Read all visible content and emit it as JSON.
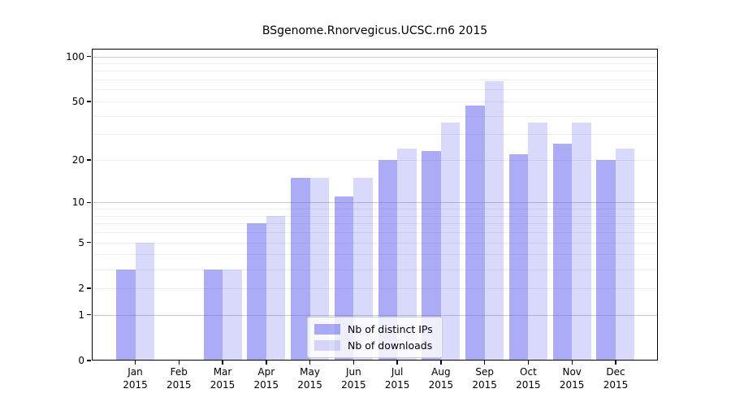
{
  "chart_data": {
    "type": "bar",
    "title": "BSgenome.Rnorvegicus.UCSC.rn6 2015",
    "categories": [
      "Jan",
      "Feb",
      "Mar",
      "Apr",
      "May",
      "Jun",
      "Jul",
      "Aug",
      "Sep",
      "Oct",
      "Nov",
      "Dec"
    ],
    "year_label": "2015",
    "series": [
      {
        "name": "Nb of distinct IPs",
        "color": "rgba(102,102,238,0.55)",
        "values": [
          3,
          0,
          3,
          7,
          15,
          11,
          20,
          23,
          47,
          22,
          26,
          20
        ]
      },
      {
        "name": "Nb of downloads",
        "color": "rgba(102,102,238,0.25)",
        "values": [
          5,
          0,
          3,
          8,
          15,
          15,
          24,
          36,
          68,
          36,
          36,
          24
        ]
      }
    ],
    "y_scale": "log1p",
    "ylim": [
      0,
      100
    ],
    "y_axis": {
      "labeled_ticks": [
        100,
        50,
        20,
        10,
        5,
        2,
        1,
        0
      ],
      "major_gridlines": [
        1,
        10,
        100
      ],
      "minor_gridlines": [
        2,
        3,
        4,
        5,
        6,
        7,
        8,
        9,
        20,
        30,
        40,
        50,
        60,
        70,
        80,
        90
      ],
      "max": 100
    },
    "xlabel": "",
    "ylabel": "",
    "grid": true,
    "legend_position": "bottom-center"
  },
  "colors": {
    "major_grid": "#c8c8c8",
    "minor_grid": "#ededed",
    "spine": "#000000",
    "background": "#ffffff",
    "legend_border": "#cccccc"
  }
}
